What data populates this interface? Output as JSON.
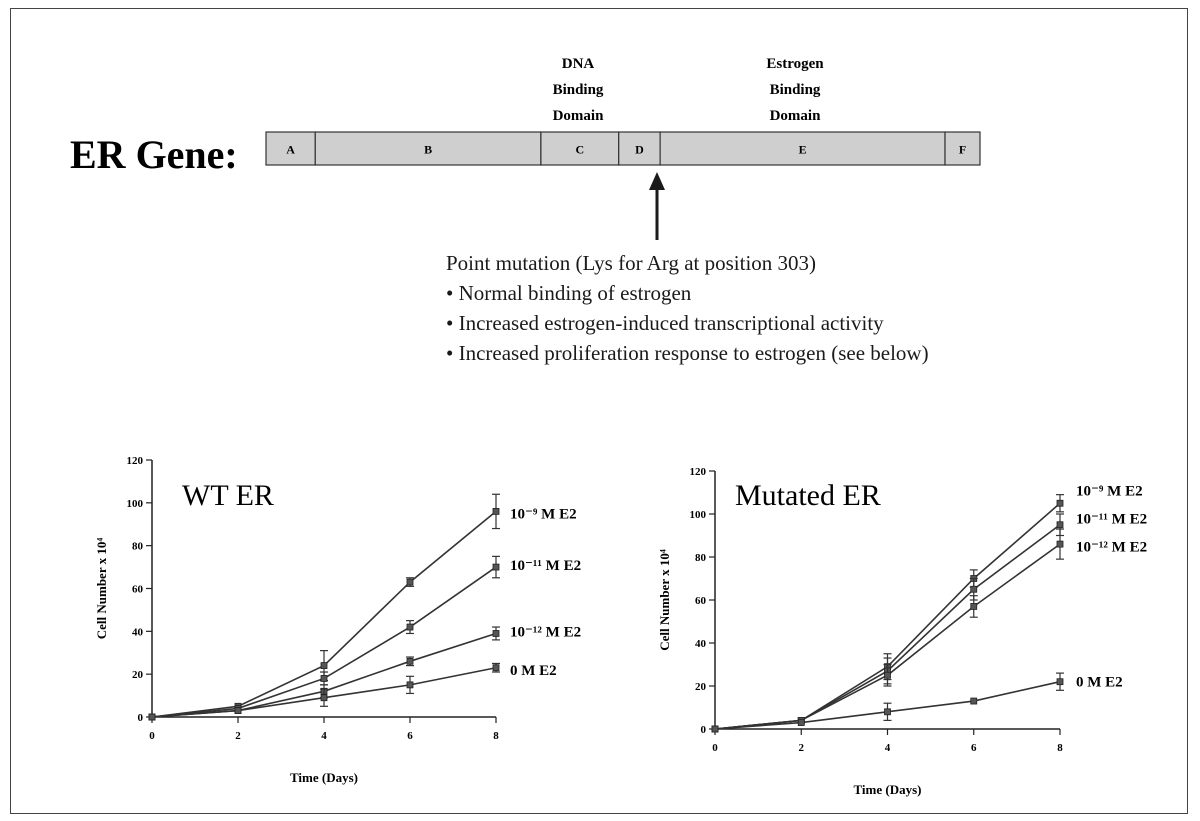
{
  "gene": {
    "title": "ER Gene:",
    "segments": [
      {
        "label": "A",
        "start": 0,
        "end": 0.069
      },
      {
        "label": "B",
        "start": 0.069,
        "end": 0.385
      },
      {
        "label": "C",
        "start": 0.385,
        "end": 0.494
      },
      {
        "label": "D",
        "start": 0.494,
        "end": 0.552
      },
      {
        "label": "E",
        "start": 0.552,
        "end": 0.951
      },
      {
        "label": "F",
        "start": 0.951,
        "end": 1
      }
    ],
    "segment_color": "#cfcfcf",
    "dna_binding_domain": [
      "DNA",
      "Binding",
      "Domain"
    ],
    "estrogen_binding_domain": [
      "Estrogen",
      "Binding",
      "Domain"
    ]
  },
  "mutation": {
    "heading": "Point mutation (Lys for Arg at position 303)",
    "bullets": [
      "• Normal binding of estrogen",
      "• Increased estrogen-induced transcriptional activity",
      "• Increased proliferation response to estrogen (see below)"
    ]
  },
  "chart_data": [
    {
      "type": "line",
      "title": "WT ER",
      "xlabel": "Time (Days)",
      "ylabel": "Cell Number x 10⁴",
      "x": [
        0,
        2,
        4,
        6,
        8
      ],
      "xticks": [
        0,
        2,
        4,
        6,
        8
      ],
      "yticks": [
        0,
        20,
        40,
        60,
        80,
        100,
        120
      ],
      "xlim": [
        0,
        8
      ],
      "ylim": [
        0,
        120
      ],
      "series": [
        {
          "name": "10⁻⁹ M E2",
          "values": [
            0,
            5,
            24,
            63,
            96
          ],
          "errors": [
            1,
            1,
            7,
            2,
            8
          ]
        },
        {
          "name": "10⁻¹¹ M E2",
          "values": [
            0,
            4,
            18,
            42,
            70
          ],
          "errors": [
            1,
            1,
            3,
            3,
            5
          ]
        },
        {
          "name": "10⁻¹² M E2",
          "values": [
            0,
            3,
            12,
            26,
            39
          ],
          "errors": [
            1,
            1,
            3,
            2,
            3
          ]
        },
        {
          "name": "0 M E2",
          "values": [
            0,
            3,
            9,
            15,
            23
          ],
          "errors": [
            1,
            1,
            4,
            4,
            2
          ]
        }
      ]
    },
    {
      "type": "line",
      "title": "Mutated ER",
      "xlabel": "Time (Days)",
      "ylabel": "Cell Number x 10⁴",
      "x": [
        0,
        2,
        4,
        6,
        8
      ],
      "xticks": [
        0,
        2,
        4,
        6,
        8
      ],
      "yticks": [
        0,
        20,
        40,
        60,
        80,
        100,
        120
      ],
      "xlim": [
        0,
        8
      ],
      "ylim": [
        0,
        120
      ],
      "series": [
        {
          "name": "10⁻⁹ M E2",
          "values": [
            0,
            4,
            29,
            70,
            105
          ],
          "errors": [
            1,
            1,
            6,
            4,
            4
          ]
        },
        {
          "name": "10⁻¹¹ M E2",
          "values": [
            0,
            4,
            27,
            65,
            95
          ],
          "errors": [
            1,
            1,
            6,
            5,
            5
          ]
        },
        {
          "name": "10⁻¹² M E2",
          "values": [
            0,
            4,
            25,
            57,
            86
          ],
          "errors": [
            1,
            1,
            5,
            5,
            7
          ]
        },
        {
          "name": "0 M E2",
          "values": [
            0,
            3,
            8,
            13,
            22
          ],
          "errors": [
            1,
            1,
            4,
            1,
            4
          ]
        }
      ]
    }
  ]
}
